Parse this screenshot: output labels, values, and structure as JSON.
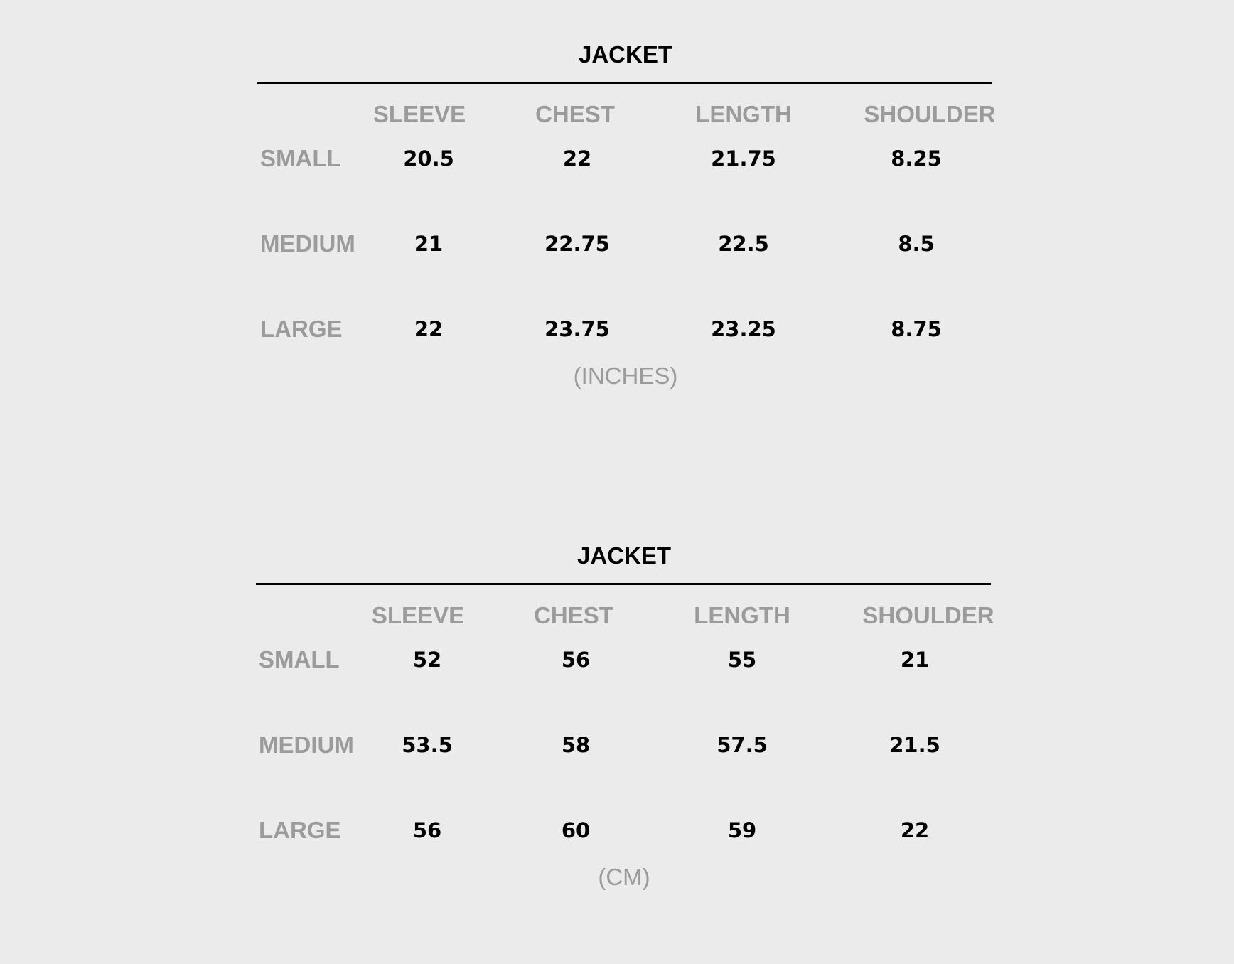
{
  "tables": [
    {
      "title": "JACKET",
      "unit": "(INCHES)",
      "columns": [
        "SLEEVE",
        "CHEST",
        "LENGTH",
        "SHOULDER"
      ],
      "rows": [
        {
          "label": "SMALL",
          "values": [
            "20.5",
            "22",
            "21.75",
            "8.25"
          ]
        },
        {
          "label": "MEDIUM",
          "values": [
            "21",
            "22.75",
            "22.5",
            "8.5"
          ]
        },
        {
          "label": "LARGE",
          "values": [
            "22",
            "23.75",
            "23.25",
            "8.75"
          ]
        }
      ]
    },
    {
      "title": "JACKET",
      "unit": "(CM)",
      "columns": [
        "SLEEVE",
        "CHEST",
        "LENGTH",
        "SHOULDER"
      ],
      "rows": [
        {
          "label": "SMALL",
          "values": [
            "52",
            "56",
            "55",
            "21"
          ]
        },
        {
          "label": "MEDIUM",
          "values": [
            "53.5",
            "58",
            "57.5",
            "21.5"
          ]
        },
        {
          "label": "LARGE",
          "values": [
            "56",
            "60",
            "59",
            "22"
          ]
        }
      ]
    }
  ],
  "colors": {
    "background": "#ebebeb",
    "label_gray": "#9b9b9b",
    "value_black": "#000000"
  }
}
